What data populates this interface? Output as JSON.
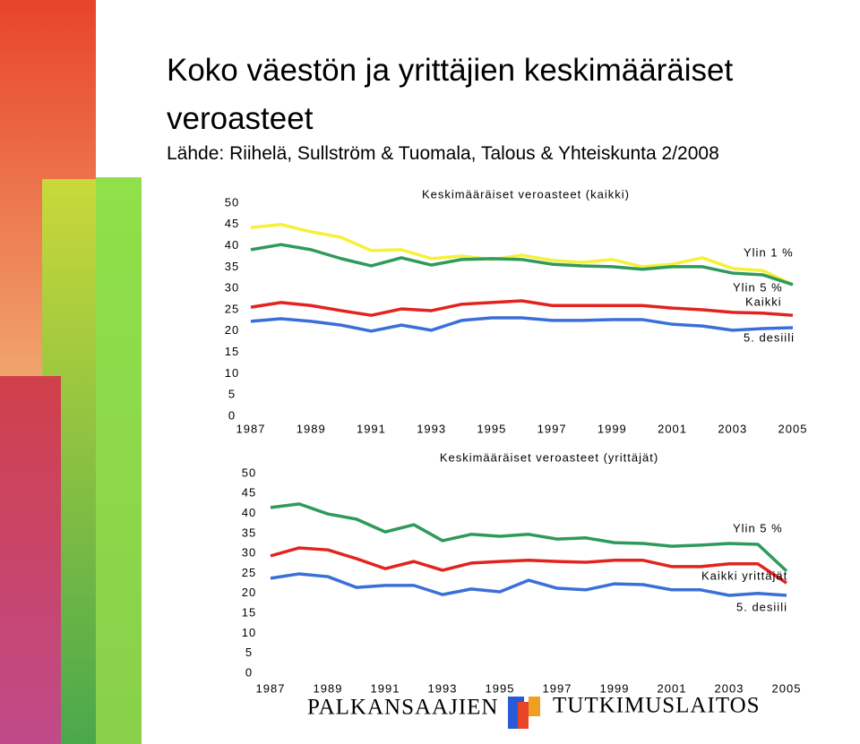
{
  "title": "Koko väestön ja yrittäjien keskimääräiset veroasteet",
  "subtitle": "Lähde: Riihelä, Sullström & Tuomala, Talous & Yhteiskunta 2/2008",
  "footer": {
    "left": "PALKANSAAJIEN",
    "right": "TUTKIMUSLAITOS"
  },
  "chart_data": [
    {
      "type": "line",
      "title": "Keskimääräiset veroasteet (kaikki)",
      "x": [
        1987,
        1988,
        1989,
        1990,
        1991,
        1992,
        1993,
        1994,
        1995,
        1996,
        1997,
        1998,
        1999,
        2000,
        2001,
        2002,
        2003,
        2004,
        2005
      ],
      "xlim": [
        1987,
        2005
      ],
      "xticks": [
        1987,
        1989,
        1991,
        1993,
        1995,
        1997,
        1999,
        2001,
        2003,
        2005
      ],
      "ylim": [
        0,
        50
      ],
      "yticks": [
        0,
        5,
        10,
        15,
        20,
        25,
        30,
        35,
        40,
        45,
        50
      ],
      "series": [
        {
          "name": "Ylin 1 %",
          "color": "#f7f03a",
          "values": [
            44.3,
            45,
            43.3,
            42,
            38.9,
            39.1,
            37,
            37.6,
            36.8,
            37.8,
            36.6,
            36.1,
            36.8,
            35.1,
            35.7,
            37.2,
            34.7,
            34.2,
            30.9
          ]
        },
        {
          "name": "Ylin 5 %",
          "color": "#2e9a5c",
          "values": [
            39.1,
            40.3,
            39.1,
            37,
            35.3,
            37.2,
            35.5,
            36.8,
            37,
            36.8,
            35.7,
            35.3,
            35.1,
            34.5,
            35.1,
            35.1,
            33.6,
            33.2,
            30.9
          ]
        },
        {
          "name": "Kaikki",
          "color": "#e3231f",
          "values": [
            25.6,
            26.7,
            26,
            24.8,
            23.7,
            25.2,
            24.8,
            26.3,
            26.7,
            27.1,
            26,
            26,
            26,
            26,
            25.4,
            25,
            24.4,
            24.2,
            23.7
          ]
        },
        {
          "name": "5. desiili",
          "color": "#3b6fd8",
          "values": [
            22.3,
            22.9,
            22.3,
            21.4,
            20,
            21.4,
            20.2,
            22.5,
            23.1,
            23.1,
            22.5,
            22.5,
            22.7,
            22.7,
            21.6,
            21.2,
            20.2,
            20.6,
            20.8
          ]
        }
      ]
    },
    {
      "type": "line",
      "title": "Keskimääräiset veroasteet (yrittäjät)",
      "x": [
        1987,
        1988,
        1989,
        1990,
        1991,
        1992,
        1993,
        1994,
        1995,
        1996,
        1997,
        1998,
        1999,
        2000,
        2001,
        2002,
        2003,
        2004,
        2005
      ],
      "xlim": [
        1987,
        2005
      ],
      "xticks": [
        1987,
        1989,
        1991,
        1993,
        1995,
        1997,
        1999,
        2001,
        2003,
        2005
      ],
      "ylim": [
        0,
        50
      ],
      "yticks": [
        0,
        5,
        10,
        15,
        20,
        25,
        30,
        35,
        40,
        45,
        50
      ],
      "series": [
        {
          "name": "Ylin 5 %",
          "color": "#2e9a5c",
          "values": [
            41.5,
            42.4,
            39.9,
            38.6,
            35.4,
            37.2,
            33.2,
            34.8,
            34.3,
            34.8,
            33.6,
            33.9,
            32.7,
            32.5,
            31.8,
            32.1,
            32.5,
            32.3,
            25.6
          ]
        },
        {
          "name": "Kaikki yrittäjät",
          "color": "#e3231f",
          "values": [
            29.4,
            31.4,
            30.9,
            28.7,
            26.2,
            28,
            25.8,
            27.6,
            28,
            28.3,
            28,
            27.8,
            28.3,
            28.3,
            26.7,
            26.7,
            27.4,
            27.4,
            22.6
          ]
        },
        {
          "name": "5. desiili",
          "color": "#3b6fd8",
          "values": [
            23.8,
            24.9,
            24.2,
            21.5,
            22,
            22,
            19.7,
            21.1,
            20.4,
            23.3,
            21.3,
            20.9,
            22.4,
            22.2,
            20.9,
            20.9,
            19.5,
            20,
            19.5
          ]
        }
      ]
    }
  ]
}
